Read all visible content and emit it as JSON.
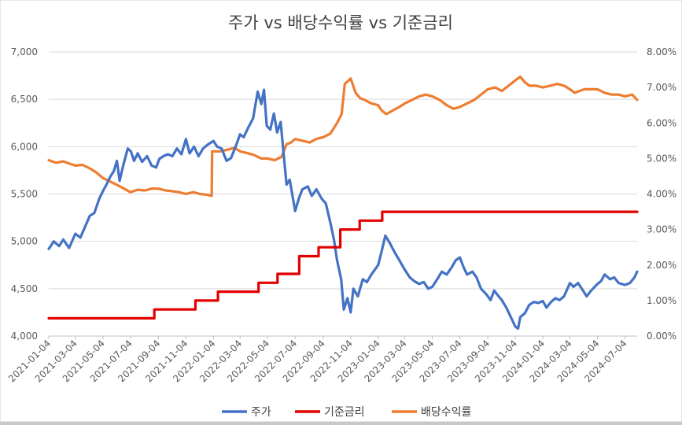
{
  "chart_data": {
    "type": "line",
    "title": "주가 vs 배당수익률 vs 기준금리",
    "xlabel": "",
    "ylabel": "",
    "x_ticks": [
      "2021-01-04",
      "2021-03-04",
      "2021-05-04",
      "2021-07-04",
      "2021-09-04",
      "2021-11-04",
      "2022-01-04",
      "2022-03-04",
      "2022-05-04",
      "2022-07-04",
      "2022-09-04",
      "2022-11-04",
      "2023-01-04",
      "2023-03-04",
      "2023-05-04",
      "2023-07-04",
      "2023-09-04",
      "2023-11-04",
      "2024-01-04",
      "2024-03-04",
      "2024-05-04",
      "2024-07-04"
    ],
    "x_range": [
      "2021-01-04",
      "2024-07-31"
    ],
    "y_left": {
      "range": [
        4000,
        7000
      ],
      "ticks": [
        "4,000",
        "4,500",
        "5,000",
        "5,500",
        "6,000",
        "6,500",
        "7,000"
      ]
    },
    "y_right": {
      "range": [
        0,
        8
      ],
      "ticks": [
        "0.00%",
        "1.00%",
        "2.00%",
        "3.00%",
        "4.00%",
        "5.00%",
        "6.00%",
        "7.00%",
        "8.00%"
      ]
    },
    "grid": true,
    "legend_position": "bottom",
    "series": [
      {
        "name": "주가",
        "axis": "left",
        "color": "#4472C4",
        "points": [
          [
            "2021-01-04",
            4920
          ],
          [
            "2021-01-15",
            5000
          ],
          [
            "2021-01-27",
            4950
          ],
          [
            "2021-02-05",
            5020
          ],
          [
            "2021-02-18",
            4930
          ],
          [
            "2021-03-04",
            5080
          ],
          [
            "2021-03-15",
            5040
          ],
          [
            "2021-03-25",
            5150
          ],
          [
            "2021-04-05",
            5270
          ],
          [
            "2021-04-15",
            5300
          ],
          [
            "2021-04-26",
            5450
          ],
          [
            "2021-05-04",
            5530
          ],
          [
            "2021-05-12",
            5600
          ],
          [
            "2021-05-20",
            5680
          ],
          [
            "2021-05-28",
            5740
          ],
          [
            "2021-06-04",
            5850
          ],
          [
            "2021-06-10",
            5640
          ],
          [
            "2021-06-18",
            5800
          ],
          [
            "2021-06-28",
            5980
          ],
          [
            "2021-07-05",
            5950
          ],
          [
            "2021-07-12",
            5850
          ],
          [
            "2021-07-20",
            5930
          ],
          [
            "2021-07-30",
            5840
          ],
          [
            "2021-08-10",
            5900
          ],
          [
            "2021-08-20",
            5800
          ],
          [
            "2021-08-30",
            5780
          ],
          [
            "2021-09-06",
            5870
          ],
          [
            "2021-09-15",
            5900
          ],
          [
            "2021-09-25",
            5920
          ],
          [
            "2021-10-05",
            5900
          ],
          [
            "2021-10-15",
            5980
          ],
          [
            "2021-10-25",
            5920
          ],
          [
            "2021-11-04",
            6080
          ],
          [
            "2021-11-12",
            5930
          ],
          [
            "2021-11-22",
            6000
          ],
          [
            "2021-12-02",
            5900
          ],
          [
            "2021-12-12",
            5980
          ],
          [
            "2021-12-22",
            6020
          ],
          [
            "2022-01-04",
            6060
          ],
          [
            "2022-01-12",
            6000
          ],
          [
            "2022-01-22",
            5980
          ],
          [
            "2022-02-02",
            5850
          ],
          [
            "2022-02-12",
            5880
          ],
          [
            "2022-02-22",
            6000
          ],
          [
            "2022-03-04",
            6130
          ],
          [
            "2022-03-12",
            6100
          ],
          [
            "2022-03-22",
            6200
          ],
          [
            "2022-04-02",
            6300
          ],
          [
            "2022-04-12",
            6580
          ],
          [
            "2022-04-20",
            6450
          ],
          [
            "2022-04-26",
            6600
          ],
          [
            "2022-05-02",
            6220
          ],
          [
            "2022-05-10",
            6180
          ],
          [
            "2022-05-18",
            6350
          ],
          [
            "2022-05-25",
            6150
          ],
          [
            "2022-06-02",
            6260
          ],
          [
            "2022-06-10",
            5850
          ],
          [
            "2022-06-15",
            5600
          ],
          [
            "2022-06-22",
            5650
          ],
          [
            "2022-07-04",
            5320
          ],
          [
            "2022-07-12",
            5450
          ],
          [
            "2022-07-20",
            5550
          ],
          [
            "2022-08-01",
            5580
          ],
          [
            "2022-08-10",
            5480
          ],
          [
            "2022-08-20",
            5550
          ],
          [
            "2022-09-01",
            5450
          ],
          [
            "2022-09-10",
            5400
          ],
          [
            "2022-09-20",
            5200
          ],
          [
            "2022-09-28",
            5020
          ],
          [
            "2022-10-05",
            4800
          ],
          [
            "2022-10-14",
            4600
          ],
          [
            "2022-10-20",
            4280
          ],
          [
            "2022-10-28",
            4400
          ],
          [
            "2022-11-04",
            4250
          ],
          [
            "2022-11-10",
            4500
          ],
          [
            "2022-11-20",
            4420
          ],
          [
            "2022-12-01",
            4600
          ],
          [
            "2022-12-10",
            4570
          ],
          [
            "2022-12-20",
            4650
          ],
          [
            "2023-01-04",
            4750
          ],
          [
            "2023-01-12",
            4900
          ],
          [
            "2023-01-20",
            5060
          ],
          [
            "2023-01-30",
            4980
          ],
          [
            "2023-02-10",
            4880
          ],
          [
            "2023-02-20",
            4800
          ],
          [
            "2023-03-04",
            4700
          ],
          [
            "2023-03-15",
            4620
          ],
          [
            "2023-03-25",
            4580
          ],
          [
            "2023-04-05",
            4550
          ],
          [
            "2023-04-15",
            4570
          ],
          [
            "2023-04-25",
            4500
          ],
          [
            "2023-05-04",
            4520
          ],
          [
            "2023-05-15",
            4600
          ],
          [
            "2023-05-25",
            4680
          ],
          [
            "2023-06-05",
            4650
          ],
          [
            "2023-06-15",
            4720
          ],
          [
            "2023-06-25",
            4800
          ],
          [
            "2023-07-04",
            4830
          ],
          [
            "2023-07-12",
            4730
          ],
          [
            "2023-07-20",
            4650
          ],
          [
            "2023-08-01",
            4680
          ],
          [
            "2023-08-10",
            4620
          ],
          [
            "2023-08-20",
            4500
          ],
          [
            "2023-09-01",
            4440
          ],
          [
            "2023-09-10",
            4380
          ],
          [
            "2023-09-18",
            4480
          ],
          [
            "2023-09-28",
            4420
          ],
          [
            "2023-10-05",
            4380
          ],
          [
            "2023-10-15",
            4300
          ],
          [
            "2023-10-25",
            4200
          ],
          [
            "2023-11-04",
            4100
          ],
          [
            "2023-11-10",
            4080
          ],
          [
            "2023-11-15",
            4200
          ],
          [
            "2023-11-25",
            4240
          ],
          [
            "2023-12-05",
            4330
          ],
          [
            "2023-12-15",
            4360
          ],
          [
            "2023-12-25",
            4350
          ],
          [
            "2024-01-04",
            4370
          ],
          [
            "2024-01-12",
            4300
          ],
          [
            "2024-01-22",
            4360
          ],
          [
            "2024-02-01",
            4400
          ],
          [
            "2024-02-10",
            4380
          ],
          [
            "2024-02-20",
            4420
          ],
          [
            "2024-03-04",
            4560
          ],
          [
            "2024-03-12",
            4520
          ],
          [
            "2024-03-22",
            4560
          ],
          [
            "2024-04-02",
            4480
          ],
          [
            "2024-04-10",
            4420
          ],
          [
            "2024-04-20",
            4480
          ],
          [
            "2024-05-04",
            4550
          ],
          [
            "2024-05-12",
            4580
          ],
          [
            "2024-05-20",
            4650
          ],
          [
            "2024-06-01",
            4600
          ],
          [
            "2024-06-10",
            4620
          ],
          [
            "2024-06-20",
            4560
          ],
          [
            "2024-07-04",
            4540
          ],
          [
            "2024-07-15",
            4560
          ],
          [
            "2024-07-25",
            4620
          ],
          [
            "2024-07-31",
            4680
          ]
        ]
      },
      {
        "name": "기준금리",
        "axis": "right",
        "color": "#E30000",
        "points": [
          [
            "2021-01-04",
            0.5
          ],
          [
            "2021-08-26",
            0.5
          ],
          [
            "2021-08-26",
            0.75
          ],
          [
            "2021-11-25",
            0.75
          ],
          [
            "2021-11-25",
            1.0
          ],
          [
            "2022-01-14",
            1.0
          ],
          [
            "2022-01-14",
            1.25
          ],
          [
            "2022-04-14",
            1.25
          ],
          [
            "2022-04-14",
            1.5
          ],
          [
            "2022-05-26",
            1.5
          ],
          [
            "2022-05-26",
            1.75
          ],
          [
            "2022-07-13",
            1.75
          ],
          [
            "2022-07-13",
            2.25
          ],
          [
            "2022-08-25",
            2.25
          ],
          [
            "2022-08-25",
            2.5
          ],
          [
            "2022-10-12",
            2.5
          ],
          [
            "2022-10-12",
            3.0
          ],
          [
            "2022-11-24",
            3.0
          ],
          [
            "2022-11-24",
            3.25
          ],
          [
            "2023-01-13",
            3.25
          ],
          [
            "2023-01-13",
            3.5
          ],
          [
            "2024-07-31",
            3.5
          ]
        ]
      },
      {
        "name": "배당수익률",
        "axis": "right",
        "color": "#ED7D31",
        "points": [
          [
            "2021-01-04",
            4.95
          ],
          [
            "2021-01-20",
            4.88
          ],
          [
            "2021-02-05",
            4.92
          ],
          [
            "2021-02-20",
            4.85
          ],
          [
            "2021-03-04",
            4.8
          ],
          [
            "2021-03-20",
            4.82
          ],
          [
            "2021-04-05",
            4.72
          ],
          [
            "2021-04-20",
            4.6
          ],
          [
            "2021-05-04",
            4.45
          ],
          [
            "2021-05-20",
            4.35
          ],
          [
            "2021-06-05",
            4.25
          ],
          [
            "2021-06-20",
            4.15
          ],
          [
            "2021-07-04",
            4.05
          ],
          [
            "2021-07-20",
            4.12
          ],
          [
            "2021-08-05",
            4.1
          ],
          [
            "2021-08-20",
            4.15
          ],
          [
            "2021-09-04",
            4.15
          ],
          [
            "2021-09-20",
            4.1
          ],
          [
            "2021-10-04",
            4.08
          ],
          [
            "2021-10-20",
            4.05
          ],
          [
            "2021-11-04",
            4.0
          ],
          [
            "2021-11-20",
            4.05
          ],
          [
            "2021-12-05",
            4.0
          ],
          [
            "2021-12-20",
            3.98
          ],
          [
            "2021-12-31",
            3.95
          ],
          [
            "2022-01-01",
            5.2
          ],
          [
            "2022-01-20",
            5.2
          ],
          [
            "2022-02-05",
            5.25
          ],
          [
            "2022-02-20",
            5.3
          ],
          [
            "2022-03-04",
            5.2
          ],
          [
            "2022-03-20",
            5.15
          ],
          [
            "2022-04-04",
            5.1
          ],
          [
            "2022-04-20",
            5.0
          ],
          [
            "2022-05-04",
            5.0
          ],
          [
            "2022-05-20",
            4.95
          ],
          [
            "2022-06-04",
            5.05
          ],
          [
            "2022-06-15",
            5.4
          ],
          [
            "2022-06-25",
            5.45
          ],
          [
            "2022-07-04",
            5.55
          ],
          [
            "2022-07-20",
            5.5
          ],
          [
            "2022-08-05",
            5.45
          ],
          [
            "2022-08-20",
            5.55
          ],
          [
            "2022-09-04",
            5.6
          ],
          [
            "2022-09-20",
            5.7
          ],
          [
            "2022-10-05",
            6.0
          ],
          [
            "2022-10-15",
            6.25
          ],
          [
            "2022-10-22",
            7.1
          ],
          [
            "2022-11-04",
            7.25
          ],
          [
            "2022-11-15",
            6.85
          ],
          [
            "2022-11-25",
            6.7
          ],
          [
            "2022-12-05",
            6.65
          ],
          [
            "2022-12-20",
            6.55
          ],
          [
            "2023-01-04",
            6.5
          ],
          [
            "2023-01-12",
            6.35
          ],
          [
            "2023-01-22",
            6.25
          ],
          [
            "2023-02-05",
            6.35
          ],
          [
            "2023-02-20",
            6.45
          ],
          [
            "2023-03-04",
            6.55
          ],
          [
            "2023-03-20",
            6.65
          ],
          [
            "2023-04-05",
            6.75
          ],
          [
            "2023-04-20",
            6.8
          ],
          [
            "2023-05-04",
            6.75
          ],
          [
            "2023-05-20",
            6.65
          ],
          [
            "2023-06-05",
            6.5
          ],
          [
            "2023-06-20",
            6.4
          ],
          [
            "2023-07-04",
            6.45
          ],
          [
            "2023-07-20",
            6.55
          ],
          [
            "2023-08-05",
            6.65
          ],
          [
            "2023-08-20",
            6.8
          ],
          [
            "2023-09-04",
            6.95
          ],
          [
            "2023-09-20",
            7.0
          ],
          [
            "2023-10-05",
            6.9
          ],
          [
            "2023-10-20",
            7.05
          ],
          [
            "2023-11-04",
            7.2
          ],
          [
            "2023-11-15",
            7.3
          ],
          [
            "2023-11-25",
            7.15
          ],
          [
            "2023-12-05",
            7.05
          ],
          [
            "2023-12-20",
            7.05
          ],
          [
            "2024-01-04",
            7.0
          ],
          [
            "2024-01-20",
            7.05
          ],
          [
            "2024-02-05",
            7.1
          ],
          [
            "2024-02-20",
            7.05
          ],
          [
            "2024-03-04",
            6.95
          ],
          [
            "2024-03-15",
            6.85
          ],
          [
            "2024-03-25",
            6.9
          ],
          [
            "2024-04-05",
            6.95
          ],
          [
            "2024-04-20",
            6.95
          ],
          [
            "2024-05-04",
            6.95
          ],
          [
            "2024-05-20",
            6.85
          ],
          [
            "2024-06-05",
            6.8
          ],
          [
            "2024-06-20",
            6.8
          ],
          [
            "2024-07-04",
            6.75
          ],
          [
            "2024-07-20",
            6.8
          ],
          [
            "2024-07-31",
            6.65
          ]
        ]
      }
    ]
  }
}
